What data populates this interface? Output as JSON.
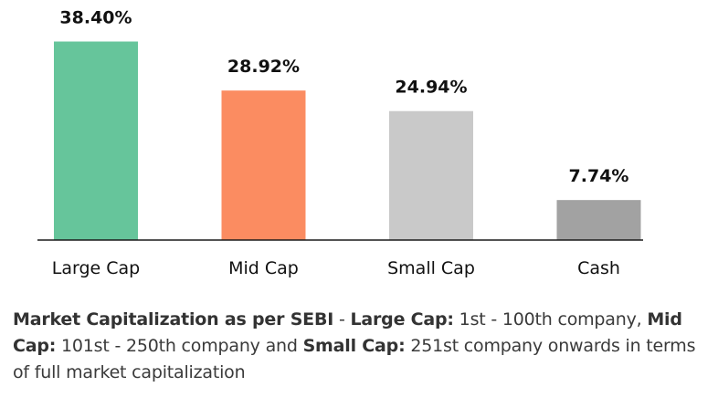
{
  "chart_data": {
    "type": "bar",
    "categories": [
      "Large Cap",
      "Mid Cap",
      "Small Cap",
      "Cash"
    ],
    "values": [
      38.4,
      28.92,
      24.94,
      7.74
    ],
    "value_labels": [
      "38.40%",
      "28.92%",
      "24.94%",
      "7.74%"
    ],
    "colors": [
      "#66c59b",
      "#fb8c61",
      "#c9c9c9",
      "#a2a2a2"
    ],
    "title": "",
    "xlabel": "",
    "ylabel": "",
    "ylim": [
      0,
      40
    ],
    "grid": false,
    "legend": "none"
  },
  "footnote": {
    "title": "Market Capitalization as per SEBI",
    "sep1": " - ",
    "large_label": "Large Cap:",
    "large_text": " 1st - 100th company, ",
    "mid_label": "Mid Cap:",
    "mid_text": " 101st - 250th company and ",
    "small_label": "Small Cap:",
    "small_text": " 251st company onwards in terms of full market capitalization"
  }
}
